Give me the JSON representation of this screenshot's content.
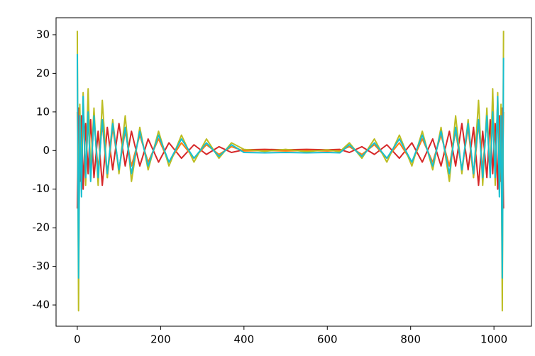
{
  "chart_data": {
    "type": "line",
    "x": [
      0,
      3,
      6,
      10,
      14,
      20,
      26,
      32,
      40,
      50,
      60,
      72,
      85,
      100,
      115,
      130,
      150,
      170,
      195,
      220,
      250,
      280,
      310,
      340,
      370,
      400,
      450,
      500,
      550,
      600,
      630,
      653,
      683,
      713,
      743,
      773,
      803,
      828,
      853,
      873,
      893,
      908,
      923,
      938,
      951,
      963,
      973,
      983,
      991,
      997,
      1003,
      1009,
      1013,
      1017,
      1020,
      1023
    ],
    "series": [
      {
        "color": "#d62728",
        "values": [
          -15,
          11,
          -8,
          9,
          -10,
          7,
          -6,
          8,
          -7,
          5,
          -9,
          6,
          -5,
          7,
          -4,
          5,
          -4,
          3,
          -3,
          2,
          -2,
          1.5,
          -1,
          1,
          -0.5,
          0.2,
          0.3,
          0.2,
          0.3,
          0.2,
          0.3,
          -0.5,
          1,
          -1,
          1.5,
          -2,
          2,
          -3,
          3,
          -4,
          5,
          -4,
          7,
          -5,
          6,
          -9,
          5,
          -7,
          8,
          -6,
          7,
          -10,
          9,
          -8,
          11,
          -15
        ]
      },
      {
        "color": "#ff7f0e",
        "values": [
          10,
          -10,
          7,
          -6,
          11,
          -8,
          9,
          -6,
          8,
          -5,
          7,
          -7,
          6,
          -5,
          5,
          -4,
          4,
          -3,
          3,
          -3,
          2,
          -2,
          1.5,
          -1,
          1,
          -0.1,
          0,
          -0.1,
          0,
          -0.1,
          0,
          1,
          -1,
          1.5,
          -2,
          2,
          -3,
          3,
          -3,
          4,
          -4,
          5,
          -5,
          6,
          -7,
          7,
          -5,
          8,
          -6,
          9,
          -6,
          11,
          -6,
          7,
          -10,
          10
        ]
      },
      {
        "color": "#bcbd22",
        "values": [
          31,
          -41.5,
          12,
          -8,
          15,
          -9,
          16,
          -6,
          11,
          -9,
          13,
          -7,
          8,
          -6,
          9,
          -8,
          6,
          -5,
          5,
          -4,
          4,
          -3,
          3,
          -2,
          2,
          0.3,
          -0.2,
          0.3,
          -0.3,
          0.2,
          -0.3,
          2,
          -2,
          3,
          -3,
          4,
          -4,
          5,
          -5,
          6,
          -8,
          9,
          -6,
          8,
          -7,
          13,
          -9,
          11,
          -6,
          16,
          -9,
          15,
          -8,
          12,
          -41.5,
          31
        ]
      },
      {
        "color": "#17becf",
        "values": [
          25,
          -33,
          9,
          -12,
          14,
          -7,
          10,
          -8,
          9,
          -7,
          8,
          -6,
          7,
          -5,
          6,
          -6,
          5,
          -4,
          4,
          -3,
          3,
          -2,
          2,
          -1.5,
          1.5,
          -0.5,
          -0.6,
          -0.5,
          -0.6,
          -0.5,
          -0.6,
          1.5,
          -1.5,
          2,
          -2,
          3,
          -3,
          4,
          -4,
          5,
          -6,
          6,
          -5,
          7,
          -6,
          8,
          -7,
          9,
          -7,
          10,
          -7,
          14,
          -12,
          9,
          -33,
          24
        ]
      }
    ],
    "xlim": [
      -51,
      1090
    ],
    "ylim": [
      -45.5,
      34.4
    ],
    "xticks": [
      0,
      200,
      400,
      600,
      800,
      1000
    ],
    "yticks": [
      -40,
      -30,
      -20,
      -10,
      0,
      10,
      20,
      30
    ],
    "grid": false
  }
}
